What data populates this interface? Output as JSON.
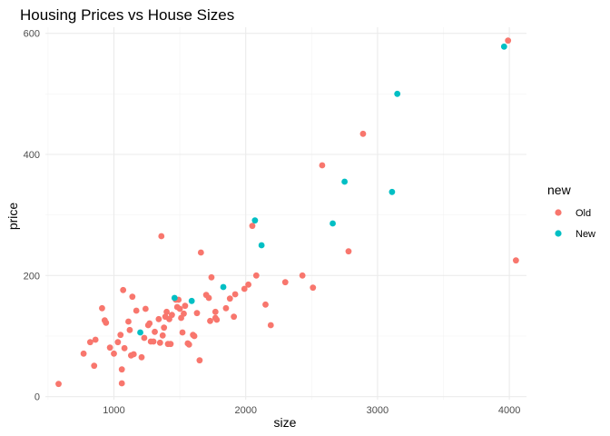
{
  "chart_data": {
    "type": "scatter",
    "title": "Housing Prices vs House Sizes",
    "xlabel": "size",
    "ylabel": "price",
    "xlim": [
      480,
      4130
    ],
    "ylim": [
      -5,
      610
    ],
    "x_ticks": [
      1000,
      2000,
      3000,
      4000
    ],
    "y_ticks": [
      0,
      200,
      400,
      600
    ],
    "grid": true,
    "legend": {
      "title": "new",
      "position": "right"
    },
    "series": [
      {
        "name": "Old",
        "color": "#F8766D",
        "points": [
          [
            580,
            21
          ],
          [
            770,
            71
          ],
          [
            820,
            90
          ],
          [
            850,
            51
          ],
          [
            860,
            94
          ],
          [
            910,
            146
          ],
          [
            930,
            126
          ],
          [
            940,
            122
          ],
          [
            970,
            81
          ],
          [
            1000,
            71
          ],
          [
            1030,
            90
          ],
          [
            1050,
            102
          ],
          [
            1060,
            45
          ],
          [
            1060,
            22
          ],
          [
            1070,
            176
          ],
          [
            1080,
            80
          ],
          [
            1110,
            124
          ],
          [
            1120,
            110
          ],
          [
            1130,
            68
          ],
          [
            1140,
            165
          ],
          [
            1150,
            70
          ],
          [
            1170,
            142
          ],
          [
            1210,
            65
          ],
          [
            1230,
            97
          ],
          [
            1240,
            145
          ],
          [
            1260,
            118
          ],
          [
            1270,
            121
          ],
          [
            1280,
            91
          ],
          [
            1300,
            91
          ],
          [
            1310,
            107
          ],
          [
            1340,
            128
          ],
          [
            1350,
            89
          ],
          [
            1360,
            265
          ],
          [
            1370,
            101
          ],
          [
            1380,
            114
          ],
          [
            1390,
            132
          ],
          [
            1400,
            140
          ],
          [
            1410,
            87
          ],
          [
            1420,
            128
          ],
          [
            1430,
            87
          ],
          [
            1440,
            135
          ],
          [
            1470,
            160
          ],
          [
            1480,
            148
          ],
          [
            1490,
            160
          ],
          [
            1500,
            145
          ],
          [
            1510,
            130
          ],
          [
            1520,
            106
          ],
          [
            1530,
            137
          ],
          [
            1540,
            150
          ],
          [
            1560,
            88
          ],
          [
            1570,
            86
          ],
          [
            1600,
            102
          ],
          [
            1610,
            100
          ],
          [
            1630,
            138
          ],
          [
            1650,
            60
          ],
          [
            1660,
            238
          ],
          [
            1700,
            168
          ],
          [
            1720,
            163
          ],
          [
            1730,
            125
          ],
          [
            1740,
            197
          ],
          [
            1770,
            130
          ],
          [
            1770,
            140
          ],
          [
            1780,
            127
          ],
          [
            1850,
            146
          ],
          [
            1880,
            162
          ],
          [
            1910,
            132
          ],
          [
            1920,
            169
          ],
          [
            1990,
            178
          ],
          [
            2020,
            185
          ],
          [
            2050,
            282
          ],
          [
            2080,
            200
          ],
          [
            2150,
            152
          ],
          [
            2190,
            118
          ],
          [
            2300,
            189
          ],
          [
            2430,
            200
          ],
          [
            2510,
            180
          ],
          [
            2580,
            382
          ],
          [
            2780,
            240
          ],
          [
            2890,
            434
          ],
          [
            3990,
            588
          ],
          [
            4050,
            225
          ]
        ]
      },
      {
        "name": "New",
        "color": "#00BFC4",
        "points": [
          [
            1200,
            106
          ],
          [
            1460,
            163
          ],
          [
            1590,
            158
          ],
          [
            1830,
            181
          ],
          [
            2070,
            291
          ],
          [
            2120,
            250
          ],
          [
            2660,
            286
          ],
          [
            2750,
            355
          ],
          [
            3110,
            338
          ],
          [
            3150,
            500
          ],
          [
            3960,
            578
          ]
        ]
      }
    ]
  }
}
